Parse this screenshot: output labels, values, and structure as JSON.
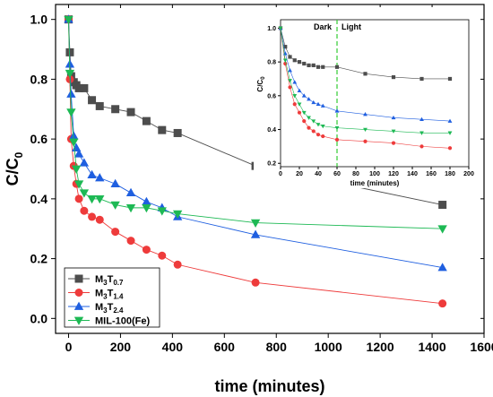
{
  "chart_data": [
    {
      "id": "main",
      "type": "line",
      "xlabel": "time (minutes)",
      "ylabel": "C/C",
      "ylabel_subscript": "0",
      "xlim": [
        -50,
        1600
      ],
      "ylim": [
        -0.05,
        1.05
      ],
      "xticks": [
        0,
        200,
        400,
        600,
        800,
        1000,
        1200,
        1400,
        1600
      ],
      "yticks": [
        0.0,
        0.2,
        0.4,
        0.6,
        0.8,
        1.0
      ],
      "legend_placement": "bottom-left",
      "series": [
        {
          "name": "M3T0.7",
          "label_base": "M",
          "label_sub1": "3",
          "label_mid": "T",
          "label_sub2": "0.7",
          "color": "#4d4d4d",
          "marker": "square",
          "x": [
            0,
            5,
            10,
            20,
            30,
            40,
            60,
            90,
            120,
            180,
            240,
            300,
            360,
            420,
            720,
            1440
          ],
          "y": [
            1.0,
            0.89,
            0.81,
            0.79,
            0.78,
            0.77,
            0.77,
            0.73,
            0.71,
            0.7,
            0.69,
            0.66,
            0.63,
            0.62,
            0.51,
            0.38
          ]
        },
        {
          "name": "M3T1.4",
          "label_base": "M",
          "label_sub1": "3",
          "label_mid": "T",
          "label_sub2": "1.4",
          "color": "#ee3b3b",
          "marker": "circle",
          "x": [
            0,
            5,
            10,
            20,
            30,
            40,
            60,
            90,
            120,
            180,
            240,
            300,
            360,
            420,
            720,
            1440
          ],
          "y": [
            1.0,
            0.8,
            0.6,
            0.51,
            0.45,
            0.4,
            0.36,
            0.34,
            0.33,
            0.29,
            0.26,
            0.23,
            0.21,
            0.18,
            0.12,
            0.05
          ]
        },
        {
          "name": "M3T2.4",
          "label_base": "M",
          "label_sub1": "3",
          "label_mid": "T",
          "label_sub2": "2.4",
          "color": "#1f5fe0",
          "marker": "triangle",
          "x": [
            0,
            5,
            10,
            20,
            30,
            40,
            60,
            90,
            120,
            180,
            240,
            300,
            360,
            420,
            720,
            1440
          ],
          "y": [
            1.0,
            0.85,
            0.75,
            0.61,
            0.57,
            0.55,
            0.52,
            0.48,
            0.47,
            0.45,
            0.42,
            0.39,
            0.37,
            0.34,
            0.28,
            0.17
          ]
        },
        {
          "name": "MIL-100(Fe)",
          "label_base": "MIL-100(Fe)",
          "label_sub1": "",
          "label_mid": "",
          "label_sub2": "",
          "color": "#1db954",
          "marker": "triangle-down",
          "x": [
            0,
            5,
            10,
            20,
            30,
            40,
            60,
            90,
            120,
            180,
            240,
            300,
            360,
            420,
            720,
            1440
          ],
          "y": [
            1.0,
            0.82,
            0.69,
            0.59,
            0.5,
            0.45,
            0.42,
            0.4,
            0.4,
            0.38,
            0.37,
            0.37,
            0.36,
            0.35,
            0.32,
            0.3
          ]
        }
      ]
    },
    {
      "id": "inset",
      "type": "line",
      "xlabel": "time (minutes)",
      "ylabel": "C/C",
      "ylabel_subscript": "0",
      "xlim": [
        0,
        200
      ],
      "ylim": [
        0.18,
        1.05
      ],
      "xticks": [
        0,
        20,
        40,
        60,
        80,
        100,
        120,
        140,
        160,
        180,
        200
      ],
      "yticks": [
        0.2,
        0.4,
        0.6,
        0.8,
        1.0
      ],
      "divider_x": 60,
      "divider_color": "#33cc33",
      "annotations": [
        "Dark",
        "Light"
      ],
      "series": [
        {
          "name": "M3T0.7",
          "color": "#4d4d4d",
          "marker": "square",
          "x": [
            0,
            5,
            10,
            15,
            20,
            25,
            30,
            35,
            40,
            45,
            60,
            90,
            120,
            150,
            180
          ],
          "y": [
            1.0,
            0.89,
            0.83,
            0.81,
            0.8,
            0.79,
            0.78,
            0.78,
            0.77,
            0.77,
            0.77,
            0.73,
            0.71,
            0.7,
            0.7
          ]
        },
        {
          "name": "M3T1.4",
          "color": "#ee3b3b",
          "marker": "circle",
          "x": [
            0,
            5,
            10,
            15,
            20,
            25,
            30,
            35,
            40,
            45,
            60,
            90,
            120,
            150,
            180
          ],
          "y": [
            1.0,
            0.79,
            0.65,
            0.55,
            0.5,
            0.45,
            0.41,
            0.39,
            0.37,
            0.36,
            0.34,
            0.33,
            0.32,
            0.3,
            0.29
          ]
        },
        {
          "name": "M3T2.4",
          "color": "#1f5fe0",
          "marker": "triangle",
          "x": [
            0,
            5,
            10,
            15,
            20,
            25,
            30,
            35,
            40,
            45,
            60,
            90,
            120,
            150,
            180
          ],
          "y": [
            1.0,
            0.85,
            0.75,
            0.68,
            0.63,
            0.6,
            0.58,
            0.56,
            0.55,
            0.54,
            0.51,
            0.49,
            0.47,
            0.46,
            0.45
          ]
        },
        {
          "name": "MIL-100(Fe)",
          "color": "#1db954",
          "marker": "triangle-down",
          "x": [
            0,
            5,
            10,
            15,
            20,
            25,
            30,
            35,
            40,
            45,
            60,
            90,
            120,
            150,
            180
          ],
          "y": [
            1.0,
            0.81,
            0.69,
            0.6,
            0.55,
            0.5,
            0.47,
            0.45,
            0.43,
            0.42,
            0.41,
            0.4,
            0.39,
            0.38,
            0.38
          ]
        }
      ]
    }
  ]
}
